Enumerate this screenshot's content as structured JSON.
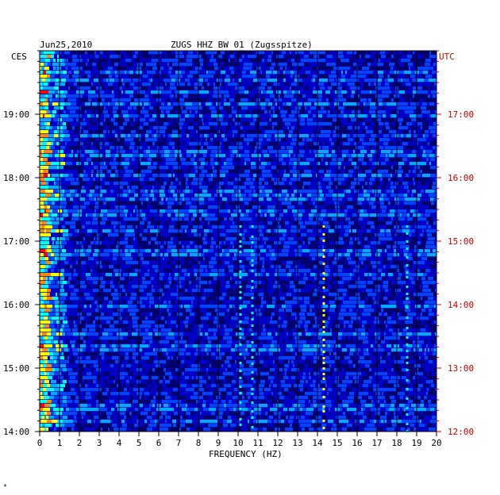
{
  "header": {
    "date": "Jun25,2010",
    "station": "ZUGS HHZ BW 01 (Zugsspitze)",
    "left_zone": "CES",
    "right_zone": "UTC",
    "footnote": "*"
  },
  "colors": {
    "background": "#000099",
    "left_tick_text": "#000000",
    "right_tick_text": "#cc0000"
  },
  "chart_data": {
    "type": "heatmap",
    "title": "ZUGS HHZ BW 01 (Zugsspitze)",
    "xlabel": "FREQUENCY (HZ)",
    "xlim": [
      0,
      20
    ],
    "x_ticks": [
      "0",
      "1",
      "2",
      "3",
      "4",
      "5",
      "6",
      "7",
      "8",
      "9",
      "10",
      "11",
      "12",
      "13",
      "14",
      "15",
      "16",
      "17",
      "18",
      "19",
      "20"
    ],
    "y_left_ticks": [
      "19:00",
      "18:00",
      "17:00",
      "16:00",
      "15:00",
      "14:00"
    ],
    "y_right_ticks": [
      "17:00",
      "16:00",
      "15:00",
      "14:00",
      "13:00",
      "12:00"
    ],
    "time_range_ces": [
      "14:00",
      "19:40"
    ],
    "colormap": [
      "#000066",
      "#0000cc",
      "#0044ff",
      "#00aaff",
      "#00ffff",
      "#ffff00",
      "#ff8800",
      "#ff0000"
    ],
    "features": [
      {
        "name": "low-frequency noise band",
        "freq_hz": [
          0,
          1
        ],
        "intensity": "high"
      },
      {
        "name": "line near 10 Hz",
        "freq_hz": 10.1,
        "intensity": "medium"
      },
      {
        "name": "line near 10.7 Hz",
        "freq_hz": 10.7,
        "intensity": "medium"
      },
      {
        "name": "line near 14.3 Hz",
        "freq_hz": 14.3,
        "intensity": "high"
      },
      {
        "name": "line near 18.5 Hz",
        "freq_hz": 18.5,
        "intensity": "medium"
      }
    ]
  }
}
